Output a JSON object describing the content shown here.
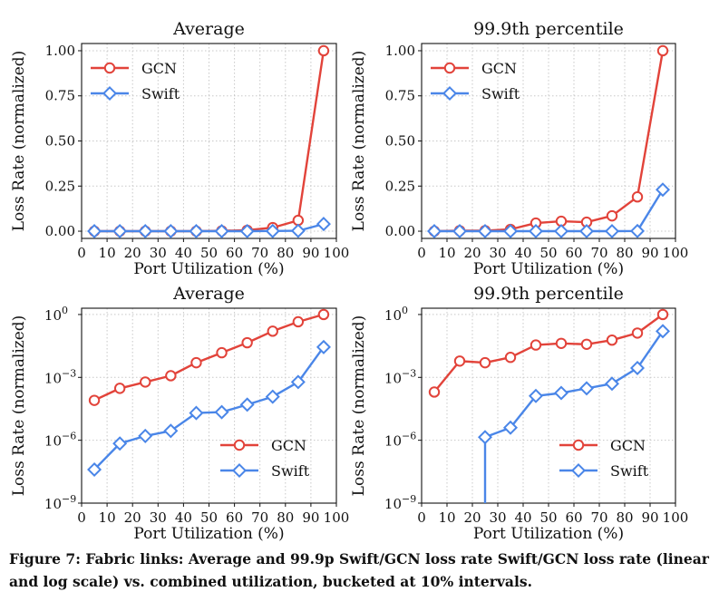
{
  "colors": {
    "GCN": "#e2433a",
    "Swift": "#4a86e8",
    "grid": "#c8c8c8"
  },
  "caption": "Figure 7: Fabric links: Average and 99.9p Swift/GCN loss rate Swift/GCN loss rate (linear and log scale) vs. combined utilization, bucketed at 10% intervals.",
  "chart_data": [
    {
      "type": "line",
      "title": "Average",
      "scale": "linear",
      "xlabel": "Port Utilization (%)",
      "ylabel": "Loss Rate (normalized)",
      "xlim": [
        0,
        100
      ],
      "ylim": [
        -0.04,
        1.04
      ],
      "xticks": [
        0,
        10,
        20,
        30,
        40,
        50,
        60,
        70,
        80,
        90,
        100
      ],
      "yticks": [
        0,
        0.25,
        0.5,
        0.75,
        1.0
      ],
      "ytick_labels": [
        "0.00",
        "0.25",
        "0.50",
        "0.75",
        "1.00"
      ],
      "x": [
        5,
        15,
        25,
        35,
        45,
        55,
        65,
        75,
        85,
        95
      ],
      "legend": "top-left",
      "grid": true,
      "series": [
        {
          "name": "GCN",
          "marker": "circle",
          "values": [
            0.0,
            0.0,
            0.0,
            0.0,
            0.0,
            0.002,
            0.005,
            0.02,
            0.06,
            1.0
          ]
        },
        {
          "name": "Swift",
          "marker": "diamond",
          "values": [
            0.0,
            0.0,
            0.0,
            0.0,
            0.0,
            0.0,
            0.0,
            0.001,
            0.002,
            0.04
          ]
        }
      ]
    },
    {
      "type": "line",
      "title": "99.9th percentile",
      "scale": "linear",
      "xlabel": "Port Utilization (%)",
      "ylabel": "Loss Rate (normalized)",
      "xlim": [
        0,
        100
      ],
      "ylim": [
        -0.04,
        1.04
      ],
      "xticks": [
        0,
        10,
        20,
        30,
        40,
        50,
        60,
        70,
        80,
        90,
        100
      ],
      "yticks": [
        0,
        0.25,
        0.5,
        0.75,
        1.0
      ],
      "ytick_labels": [
        "0.00",
        "0.25",
        "0.50",
        "0.75",
        "1.00"
      ],
      "x": [
        5,
        15,
        25,
        35,
        45,
        55,
        65,
        75,
        85,
        95
      ],
      "legend": "top-left",
      "grid": true,
      "series": [
        {
          "name": "GCN",
          "marker": "circle",
          "values": [
            0.0,
            0.003,
            0.003,
            0.01,
            0.045,
            0.055,
            0.05,
            0.085,
            0.19,
            1.0
          ]
        },
        {
          "name": "Swift",
          "marker": "diamond",
          "values": [
            0.0,
            0.0,
            0.0,
            0.0,
            0.0,
            0.0,
            0.0,
            0.0,
            0.001,
            0.23
          ]
        }
      ]
    },
    {
      "type": "line",
      "title": "Average",
      "scale": "log",
      "xlabel": "Port Utilization (%)",
      "ylabel": "Loss Rate (normalized)",
      "xlim": [
        0,
        100
      ],
      "ylim_log10": [
        -9,
        0.3
      ],
      "xticks": [
        0,
        10,
        20,
        30,
        40,
        50,
        60,
        70,
        80,
        90,
        100
      ],
      "yticks_log10": [
        0,
        -3,
        -6,
        -9
      ],
      "ytick_labels": [
        "10",
        "10",
        "10",
        "10"
      ],
      "ytick_exponents": [
        "0",
        "−3",
        "−6",
        "−9"
      ],
      "x": [
        5,
        15,
        25,
        35,
        45,
        55,
        65,
        75,
        85,
        95
      ],
      "legend": "lower-right",
      "grid": true,
      "series": [
        {
          "name": "GCN",
          "marker": "circle",
          "values": [
            8e-05,
            0.0003,
            0.0006,
            0.0012,
            0.005,
            0.015,
            0.045,
            0.16,
            0.45,
            1.0
          ]
        },
        {
          "name": "Swift",
          "marker": "diamond",
          "values": [
            4e-08,
            7e-07,
            1.6e-06,
            2.8e-06,
            2e-05,
            2.2e-05,
            5e-05,
            0.00012,
            0.0006,
            0.028
          ]
        }
      ]
    },
    {
      "type": "line",
      "title": "99.9th percentile",
      "scale": "log",
      "xlabel": "Port Utilization (%)",
      "ylabel": "Loss Rate (normalized)",
      "xlim": [
        0,
        100
      ],
      "ylim_log10": [
        -9,
        0.3
      ],
      "xticks": [
        0,
        10,
        20,
        30,
        40,
        50,
        60,
        70,
        80,
        90,
        100
      ],
      "yticks_log10": [
        0,
        -3,
        -6,
        -9
      ],
      "ytick_labels": [
        "10",
        "10",
        "10",
        "10"
      ],
      "ytick_exponents": [
        "0",
        "−3",
        "−6",
        "−9"
      ],
      "x": [
        5,
        15,
        25,
        35,
        45,
        55,
        65,
        75,
        85,
        95
      ],
      "legend": "lower-right",
      "grid": true,
      "series": [
        {
          "name": "GCN",
          "marker": "circle",
          "values": [
            0.0002,
            0.006,
            0.005,
            0.009,
            0.035,
            0.042,
            0.038,
            0.06,
            0.13,
            1.0
          ]
        },
        {
          "name": "Swift",
          "marker": "diamond",
          "x_start": 25,
          "values": [
            null,
            null,
            1.4e-06,
            4e-06,
            0.00013,
            0.00018,
            0.0003,
            0.0005,
            0.0028,
            0.16
          ]
        }
      ]
    }
  ]
}
